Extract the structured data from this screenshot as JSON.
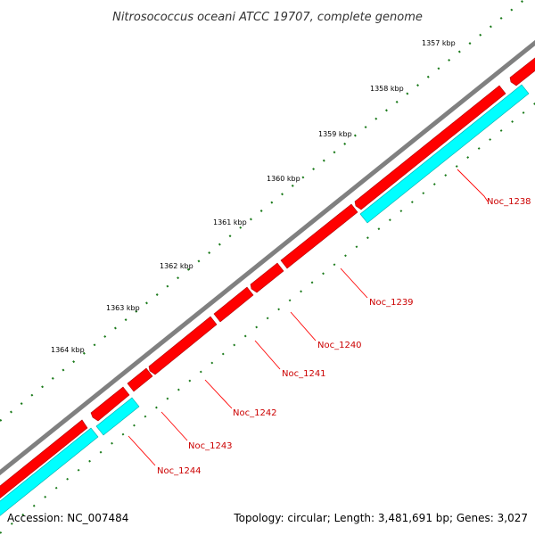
{
  "title": "Nitrosococcus oceani ATCC 19707, complete genome",
  "accession": "Accession: NC_007484",
  "summary": "Topology: circular; Length: 3,481,691 bp; Genes: 3,027",
  "colors": {
    "backbone": "#808080",
    "forward_gene": "#ff0000",
    "forward_gene_dark": "#b00000",
    "reverse_gene": "#00ffff",
    "reverse_gene_dark": "#00a8a8",
    "ticks": "#1a7a1a",
    "label_line": "#ff0000",
    "label_text": "#cc0000"
  },
  "scale_ticks": [
    {
      "label": "1357 kbp"
    },
    {
      "label": "1358 kbp"
    },
    {
      "label": "1359 kbp"
    },
    {
      "label": "1360 kbp"
    },
    {
      "label": "1361 kbp"
    },
    {
      "label": "1362 kbp"
    },
    {
      "label": "1363 kbp"
    },
    {
      "label": "1364 kbp"
    }
  ],
  "gene_labels": [
    {
      "label": "Noc_1238"
    },
    {
      "label": "Noc_1239"
    },
    {
      "label": "Noc_1240"
    },
    {
      "label": "Noc_1241"
    },
    {
      "label": "Noc_1242"
    },
    {
      "label": "Noc_1243"
    },
    {
      "label": "Noc_1244"
    }
  ]
}
